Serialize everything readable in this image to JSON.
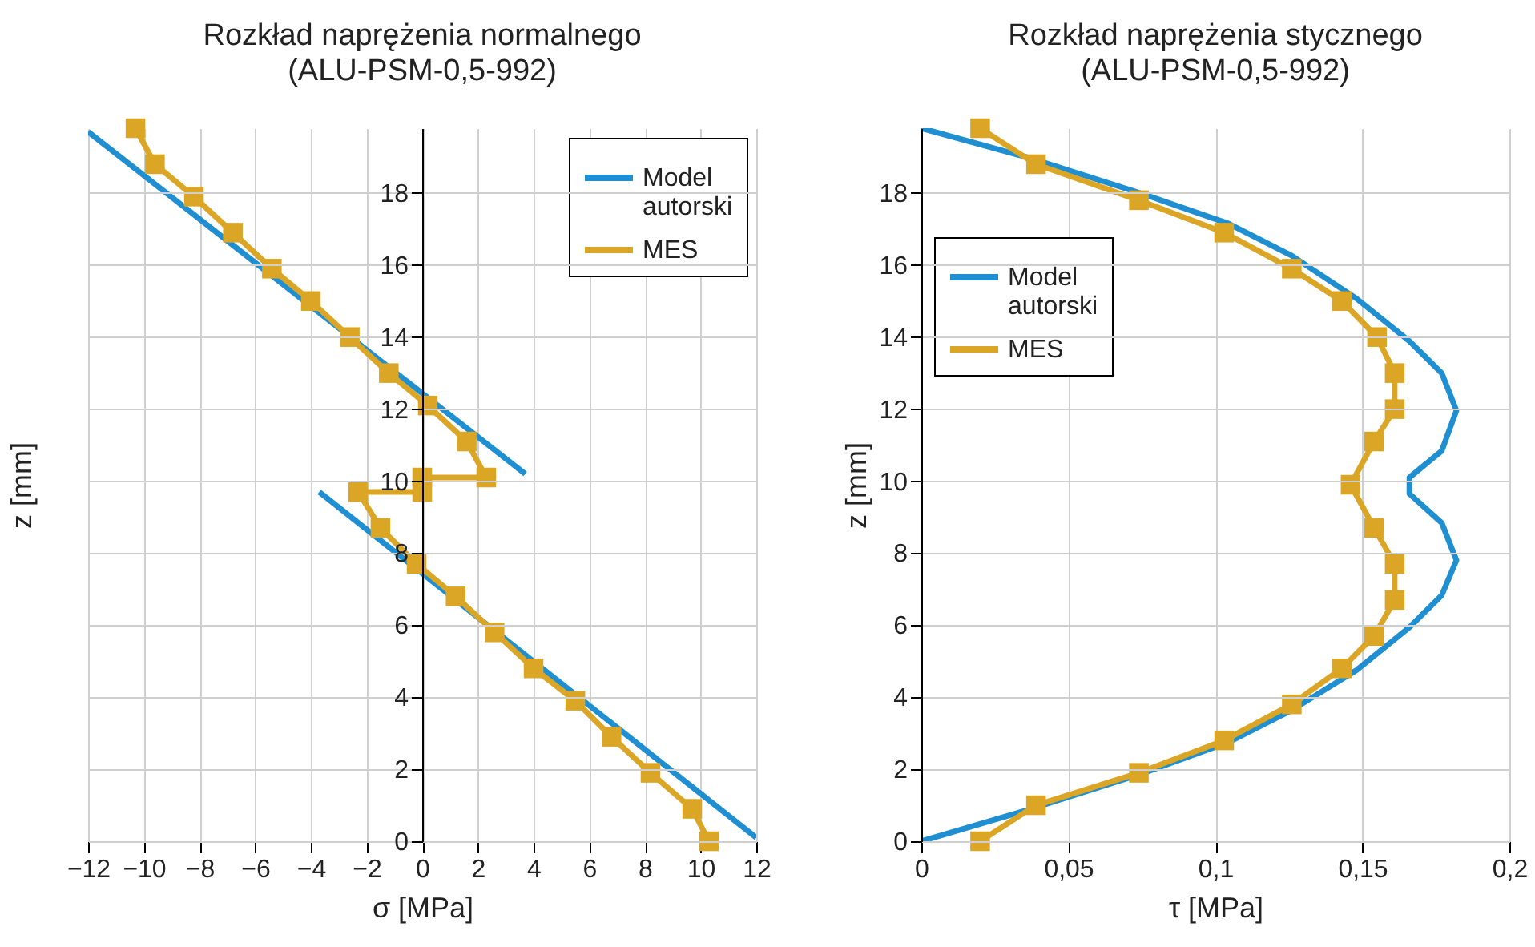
{
  "chart_data": [
    {
      "type": "line",
      "title": "Rozkład naprężenia normalnego",
      "subtitle": "(ALU-PSM-0,5-992)",
      "xlabel": "σ [MPa]",
      "ylabel": "z [mm]",
      "xlim": [
        -12,
        12
      ],
      "ylim": [
        0,
        19.8
      ],
      "xticks": [
        {
          "value": -12,
          "label": "−12"
        },
        {
          "value": -10,
          "label": "−10"
        },
        {
          "value": -8,
          "label": "−8"
        },
        {
          "value": -6,
          "label": "−6"
        },
        {
          "value": -4,
          "label": "−4"
        },
        {
          "value": -2,
          "label": "−2"
        },
        0,
        2,
        4,
        6,
        8,
        10,
        12
      ],
      "yticks": [
        0,
        2,
        4,
        6,
        8,
        10,
        12,
        14,
        16,
        18
      ],
      "grid": true,
      "legend": "top right",
      "series": [
        {
          "name": "Model autorski",
          "color": "#1f8fd1",
          "marker": "none",
          "x": [
            -12,
            3.7,
            null,
            -3.7,
            12
          ],
          "values": [
            19.7,
            10.2,
            null,
            9.7,
            0.1
          ]
        },
        {
          "name": "MES",
          "color": "#dba626",
          "marker": "square",
          "x": [
            -10.3,
            -9.6,
            -8.2,
            -6.8,
            -5.4,
            -4.0,
            -2.6,
            -1.2,
            0.2,
            1.6,
            2.3,
            0,
            0,
            -2.3,
            -1.5,
            -0.2,
            1.2,
            2.6,
            4.0,
            5.5,
            6.8,
            8.2,
            9.7,
            10.3
          ],
          "values": [
            19.8,
            18.8,
            17.9,
            16.9,
            15.9,
            15.0,
            14.0,
            13.0,
            12.1,
            11.1,
            10.1,
            10.1,
            9.7,
            9.7,
            8.7,
            7.7,
            6.8,
            5.8,
            4.8,
            3.9,
            2.9,
            1.9,
            0.9,
            0
          ]
        }
      ]
    },
    {
      "type": "line",
      "title": "Rozkład naprężenia stycznego",
      "subtitle": "(ALU-PSM-0,5-992)",
      "xlabel": "τ [MPa]",
      "ylabel": "z [mm]",
      "xlim": [
        0,
        0.2
      ],
      "ylim": [
        0,
        19.8
      ],
      "xticks": [
        0,
        {
          "value": 0.05,
          "label": "0,05"
        },
        {
          "value": 0.1,
          "label": "0,1"
        },
        {
          "value": 0.15,
          "label": "0,15"
        },
        {
          "value": 0.2,
          "label": "0,2"
        }
      ],
      "yticks": [
        0,
        2,
        4,
        6,
        8,
        10,
        12,
        14,
        16,
        18
      ],
      "grid": true,
      "legend": "top left",
      "series": [
        {
          "name": "Model autorski",
          "color": "#1f8fd1",
          "marker": "none",
          "x": [
            0,
            0.037,
            0.0755,
            0.1045,
            0.126,
            0.148,
            0.166,
            0.177,
            0.182,
            0.177,
            0.166,
            0.166,
            0.177,
            0.182,
            0.177,
            0.166,
            0.148,
            0.126,
            0.1045,
            0.0755,
            0.037,
            0
          ],
          "values": [
            19.8,
            18.97,
            17.97,
            17.15,
            16.26,
            15.07,
            13.89,
            13.0,
            11.96,
            10.84,
            10.1,
            9.65,
            8.84,
            7.8,
            6.83,
            5.94,
            4.75,
            3.64,
            2.75,
            1.89,
            0.89,
            0
          ]
        },
        {
          "name": "MES",
          "color": "#dba626",
          "marker": "square",
          "x": [
            0.02,
            0.039,
            0.074,
            0.103,
            0.126,
            0.143,
            0.155,
            0.161,
            0.161,
            0.154,
            0.146,
            0.154,
            0.161,
            0.161,
            0.154,
            0.143,
            0.126,
            0.103,
            0.074,
            0.039,
            0.02
          ],
          "values": [
            19.8,
            18.8,
            17.8,
            16.9,
            15.9,
            15.0,
            14.0,
            13.0,
            12.0,
            11.1,
            9.9,
            8.7,
            7.7,
            6.7,
            5.7,
            4.8,
            3.8,
            2.8,
            1.9,
            1.0,
            0
          ]
        }
      ]
    }
  ]
}
